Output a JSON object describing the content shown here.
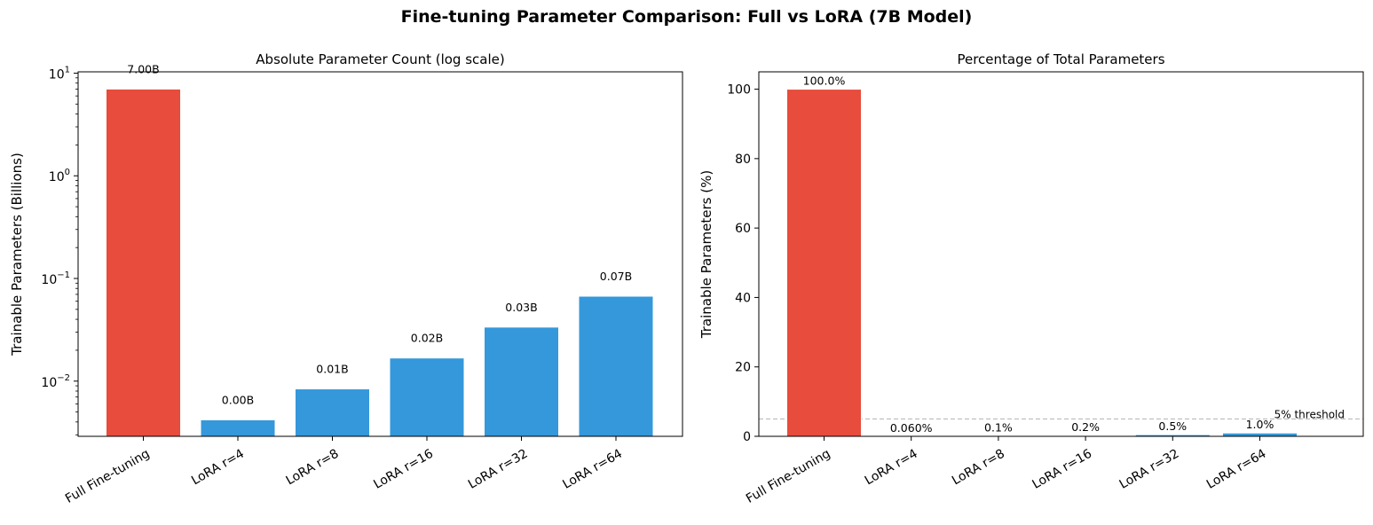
{
  "figure": {
    "title": "Fine-tuning Parameter Comparison: Full vs LoRA (7B Model)"
  },
  "colors": {
    "full": "#e74c3c",
    "lora": "#3498db",
    "threshold": "#bbbbbb",
    "threshold_label": "#888888"
  },
  "chart_data": [
    {
      "type": "bar",
      "title": "Absolute Parameter Count (log scale)",
      "xlabel": "",
      "ylabel": "Trainable Parameters (Billions)",
      "yscale": "log",
      "ylim": [
        0.0029,
        10.3
      ],
      "yticks": [
        {
          "value": 0.01,
          "base": "10",
          "exp": "−2"
        },
        {
          "value": 0.1,
          "base": "10",
          "exp": "−1"
        },
        {
          "value": 1,
          "base": "10",
          "exp": "0"
        },
        {
          "value": 10,
          "base": "10",
          "exp": "1"
        }
      ],
      "categories": [
        "Full Fine-tuning",
        "LoRA r=4",
        "LoRA r=8",
        "LoRA r=16",
        "LoRA r=32",
        "LoRA r=64"
      ],
      "values": [
        7.0,
        0.0042,
        0.0084,
        0.0168,
        0.0336,
        0.0672
      ],
      "data_labels": [
        "7.00B",
        "0.00B",
        "0.01B",
        "0.02B",
        "0.03B",
        "0.07B"
      ],
      "bar_colors": [
        "full",
        "lora",
        "lora",
        "lora",
        "lora",
        "lora"
      ]
    },
    {
      "type": "bar",
      "title": "Percentage of Total Parameters",
      "xlabel": "",
      "ylabel": "Trainable Parameters (%)",
      "yscale": "linear",
      "ylim": [
        0,
        105
      ],
      "yticks": [
        0,
        20,
        40,
        60,
        80,
        100
      ],
      "categories": [
        "Full Fine-tuning",
        "LoRA r=4",
        "LoRA r=8",
        "LoRA r=16",
        "LoRA r=32",
        "LoRA r=64"
      ],
      "values": [
        100.0,
        0.06,
        0.12,
        0.24,
        0.48,
        0.96
      ],
      "data_labels": [
        "100.0%",
        "0.060%",
        "0.1%",
        "0.2%",
        "0.5%",
        "1.0%"
      ],
      "bar_colors": [
        "full",
        "lora",
        "lora",
        "lora",
        "lora",
        "lora"
      ],
      "threshold": {
        "value": 5,
        "label": "5% threshold"
      }
    }
  ]
}
